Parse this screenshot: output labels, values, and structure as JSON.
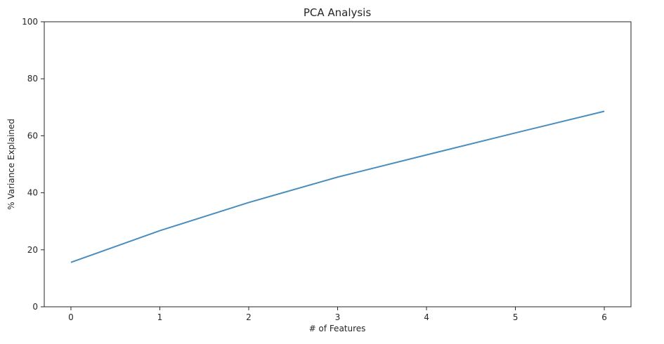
{
  "chart_data": {
    "type": "line",
    "title": "PCA Analysis",
    "xlabel": "# of Features",
    "ylabel": "% Variance Explained",
    "x": [
      0,
      1,
      2,
      3,
      4,
      5,
      6
    ],
    "series": [
      {
        "values": [
          15.6,
          26.7,
          36.6,
          45.5,
          53.3,
          61.0,
          68.6
        ],
        "color": "#4a8dbf"
      }
    ],
    "xlim": [
      -0.3,
      6.3
    ],
    "ylim": [
      0,
      100
    ],
    "xticks": [
      "0",
      "1",
      "2",
      "3",
      "4",
      "5",
      "6"
    ],
    "yticks": [
      "0",
      "20",
      "40",
      "60",
      "80",
      "100"
    ],
    "grid": false,
    "legend": "none"
  }
}
